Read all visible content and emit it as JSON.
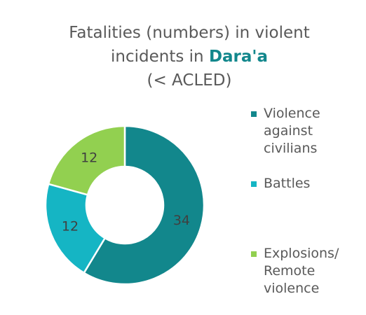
{
  "chart_data": {
    "type": "donut",
    "title": "Fatalities (numbers) in violent incidents in",
    "title_highlight": "Dara'a",
    "subtitle": "(< ACLED)",
    "categories": [
      "Violence against civilians",
      "Battles",
      "Explosions/ Remote violence"
    ],
    "values": [
      34,
      12,
      12
    ],
    "colors": [
      "#12878c",
      "#15b5c4",
      "#92d050"
    ],
    "highlight_color": "#12878c"
  }
}
